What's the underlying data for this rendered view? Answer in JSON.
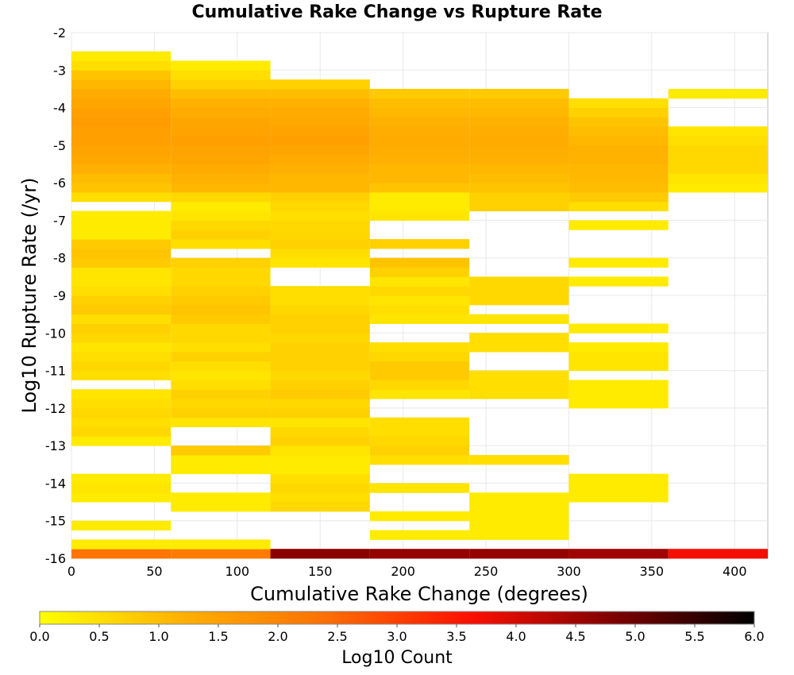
{
  "chart_data": {
    "type": "heatmap",
    "title": "Cumulative Rake Change vs Rupture Rate",
    "xlabel": "Cumulative Rake Change (degrees)",
    "ylabel": "Log10 Rupture Rate (/yr)",
    "xlim": [
      0,
      420
    ],
    "ylim": [
      -16,
      -2
    ],
    "x_ticks": [
      "0",
      "50",
      "100",
      "150",
      "200",
      "250",
      "300",
      "350",
      "400"
    ],
    "y_ticks": [
      "-2",
      "-3",
      "-4",
      "-5",
      "-6",
      "-7",
      "-8",
      "-9",
      "-10",
      "-11",
      "-12",
      "-13",
      "-14",
      "-15",
      "-16"
    ],
    "x_bin_width": 60,
    "y_bin_height": 0.25,
    "grid": true,
    "colorbar": {
      "label": "Log10 Count",
      "range": [
        0.0,
        6.0
      ],
      "ticks": [
        "0.0",
        "0.5",
        "1.0",
        "1.5",
        "2.0",
        "2.5",
        "3.0",
        "3.5",
        "4.0",
        "4.5",
        "5.0",
        "5.5",
        "6.0"
      ],
      "colors": [
        "#ffff00",
        "#ffb000",
        "#ff7000",
        "#ff1000",
        "#800000",
        "#000000"
      ]
    },
    "columns": [
      {
        "x_start": 0,
        "cells": [
          [
            -16,
            2.3
          ],
          [
            -15.75,
            0.3
          ],
          [
            -15.25,
            0.3
          ],
          [
            -14.5,
            0.3
          ],
          [
            -14.25,
            0.4
          ],
          [
            -14,
            0.3
          ],
          [
            -13,
            0.3
          ],
          [
            -12.75,
            0.6
          ],
          [
            -12.5,
            0.5
          ],
          [
            -12.25,
            0.6
          ],
          [
            -12,
            0.5
          ],
          [
            -11.75,
            0.4
          ],
          [
            -11.25,
            0.5
          ],
          [
            -11,
            0.6
          ],
          [
            -10.75,
            0.5
          ],
          [
            -10.5,
            0.4
          ],
          [
            -10.25,
            0.6
          ],
          [
            -10,
            0.7
          ],
          [
            -9.75,
            0.5
          ],
          [
            -9.5,
            0.8
          ],
          [
            -9.25,
            0.7
          ],
          [
            -9,
            0.5
          ],
          [
            -8.75,
            0.4
          ],
          [
            -8.5,
            0.4
          ],
          [
            -8.25,
            0.8
          ],
          [
            -8,
            0.9
          ],
          [
            -7.75,
            0.8
          ],
          [
            -7.5,
            0.3
          ],
          [
            -7.25,
            0.3
          ],
          [
            -7,
            0.3
          ],
          [
            -6.5,
            0.5
          ],
          [
            -6.25,
            0.9
          ],
          [
            -6,
            1.0
          ],
          [
            -5.75,
            1.2
          ],
          [
            -5.5,
            1.35
          ],
          [
            -5.25,
            1.45
          ],
          [
            -5,
            1.5
          ],
          [
            -4.75,
            1.5
          ],
          [
            -4.5,
            1.55
          ],
          [
            -4.25,
            1.5
          ],
          [
            -4,
            1.4
          ],
          [
            -3.75,
            1.3
          ],
          [
            -3.5,
            1.1
          ],
          [
            -3.25,
            0.9
          ],
          [
            -3,
            0.5
          ],
          [
            -2.75,
            0.3
          ]
        ]
      },
      {
        "x_start": 60,
        "cells": [
          [
            -16,
            2.2
          ],
          [
            -15.75,
            0.3
          ],
          [
            -14.75,
            0.3
          ],
          [
            -14.5,
            0.3
          ],
          [
            -13.75,
            0.3
          ],
          [
            -13.5,
            0.3
          ],
          [
            -13.25,
            0.8
          ],
          [
            -12.5,
            0.4
          ],
          [
            -12.25,
            0.7
          ],
          [
            -12,
            0.6
          ],
          [
            -11.75,
            0.7
          ],
          [
            -11.5,
            0.5
          ],
          [
            -11.25,
            0.4
          ],
          [
            -11,
            0.5
          ],
          [
            -10.75,
            0.7
          ],
          [
            -10.5,
            0.5
          ],
          [
            -10.25,
            0.6
          ],
          [
            -10,
            0.6
          ],
          [
            -9.75,
            0.8
          ],
          [
            -9.5,
            0.9
          ],
          [
            -9.25,
            0.8
          ],
          [
            -9,
            0.7
          ],
          [
            -8.75,
            0.6
          ],
          [
            -8.5,
            0.6
          ],
          [
            -8.25,
            0.7
          ],
          [
            -7.75,
            0.5
          ],
          [
            -7.5,
            0.7
          ],
          [
            -7.25,
            0.6
          ],
          [
            -7,
            0.4
          ],
          [
            -6.75,
            0.3
          ],
          [
            -6.5,
            0.6
          ],
          [
            -6.25,
            1.1
          ],
          [
            -6,
            1.2
          ],
          [
            -5.75,
            1.3
          ],
          [
            -5.5,
            1.4
          ],
          [
            -5.25,
            1.45
          ],
          [
            -5,
            1.5
          ],
          [
            -4.75,
            1.45
          ],
          [
            -4.5,
            1.4
          ],
          [
            -4.25,
            1.3
          ],
          [
            -4,
            1.2
          ],
          [
            -3.75,
            1.0
          ],
          [
            -3.5,
            0.7
          ],
          [
            -3.25,
            0.5
          ],
          [
            -3,
            0.3
          ]
        ]
      },
      {
        "x_start": 120,
        "cells": [
          [
            -16,
            4.7
          ],
          [
            -14.75,
            0.6
          ],
          [
            -14.5,
            0.5
          ],
          [
            -14.25,
            0.6
          ],
          [
            -14,
            0.5
          ],
          [
            -13.75,
            0.3
          ],
          [
            -13.5,
            0.3
          ],
          [
            -13.25,
            0.4
          ],
          [
            -13,
            0.7
          ],
          [
            -12.75,
            0.6
          ],
          [
            -12.5,
            0.4
          ],
          [
            -12.25,
            0.7
          ],
          [
            -12,
            0.6
          ],
          [
            -11.75,
            0.8
          ],
          [
            -11.5,
            0.7
          ],
          [
            -11.25,
            0.6
          ],
          [
            -11,
            0.7
          ],
          [
            -10.75,
            0.7
          ],
          [
            -10.5,
            0.7
          ],
          [
            -10.25,
            0.6
          ],
          [
            -10,
            0.7
          ],
          [
            -9.75,
            0.7
          ],
          [
            -9.5,
            0.6
          ],
          [
            -9.25,
            0.5
          ],
          [
            -9,
            0.5
          ],
          [
            -8.25,
            0.4
          ],
          [
            -8,
            0.5
          ],
          [
            -7.75,
            0.7
          ],
          [
            -7.5,
            0.6
          ],
          [
            -7.25,
            0.6
          ],
          [
            -7,
            0.5
          ],
          [
            -6.75,
            0.6
          ],
          [
            -6.5,
            0.7
          ],
          [
            -6.25,
            1.1
          ],
          [
            -6,
            1.1
          ],
          [
            -5.75,
            1.2
          ],
          [
            -5.5,
            1.3
          ],
          [
            -5.25,
            1.4
          ],
          [
            -5,
            1.5
          ],
          [
            -4.75,
            1.45
          ],
          [
            -4.5,
            1.35
          ],
          [
            -4.25,
            1.3
          ],
          [
            -4,
            1.2
          ],
          [
            -3.75,
            1.0
          ],
          [
            -3.5,
            0.7
          ]
        ]
      },
      {
        "x_start": 180,
        "cells": [
          [
            -16,
            4.6
          ],
          [
            -15.5,
            0.3
          ],
          [
            -15,
            0.3
          ],
          [
            -14.25,
            0.4
          ],
          [
            -13.5,
            0.5
          ],
          [
            -13.25,
            0.7
          ],
          [
            -13,
            0.6
          ],
          [
            -12.75,
            0.5
          ],
          [
            -12.5,
            0.5
          ],
          [
            -11.75,
            0.4
          ],
          [
            -11.5,
            0.6
          ],
          [
            -11.25,
            0.8
          ],
          [
            -11,
            0.8
          ],
          [
            -10.75,
            0.6
          ],
          [
            -10.5,
            0.5
          ],
          [
            -9.75,
            0.4
          ],
          [
            -9.5,
            0.5
          ],
          [
            -9.25,
            0.4
          ],
          [
            -9,
            0.6
          ],
          [
            -8.75,
            0.4
          ],
          [
            -8.5,
            0.7
          ],
          [
            -8.25,
            0.9
          ],
          [
            -7.75,
            0.7
          ],
          [
            -7,
            0.4
          ],
          [
            -6.75,
            0.3
          ],
          [
            -6.5,
            0.3
          ],
          [
            -6.25,
            0.9
          ],
          [
            -6,
            1.1
          ],
          [
            -5.75,
            1.1
          ],
          [
            -5.5,
            1.2
          ],
          [
            -5.25,
            1.25
          ],
          [
            -5,
            1.3
          ],
          [
            -4.75,
            1.25
          ],
          [
            -4.5,
            1.2
          ],
          [
            -4.25,
            1.1
          ],
          [
            -4,
            1.0
          ],
          [
            -3.75,
            0.8
          ]
        ]
      },
      {
        "x_start": 240,
        "cells": [
          [
            -16,
            4.6
          ],
          [
            -15.5,
            0.3
          ],
          [
            -15.25,
            0.3
          ],
          [
            -15,
            0.3
          ],
          [
            -14.75,
            0.3
          ],
          [
            -14.5,
            0.3
          ],
          [
            -13.5,
            0.5
          ],
          [
            -11.75,
            0.5
          ],
          [
            -11.5,
            0.5
          ],
          [
            -11.25,
            0.5
          ],
          [
            -10.5,
            0.5
          ],
          [
            -10.25,
            0.5
          ],
          [
            -9.75,
            0.4
          ],
          [
            -9.25,
            0.6
          ],
          [
            -9,
            0.6
          ],
          [
            -8.75,
            0.6
          ],
          [
            -6.75,
            0.7
          ],
          [
            -6.5,
            0.7
          ],
          [
            -6.25,
            0.9
          ],
          [
            -6,
            1.0
          ],
          [
            -5.75,
            1.1
          ],
          [
            -5.5,
            1.2
          ],
          [
            -5.25,
            1.25
          ],
          [
            -5,
            1.3
          ],
          [
            -4.75,
            1.25
          ],
          [
            -4.5,
            1.2
          ],
          [
            -4.25,
            1.1
          ],
          [
            -4,
            1.0
          ],
          [
            -3.75,
            0.8
          ]
        ]
      },
      {
        "x_start": 300,
        "cells": [
          [
            -16,
            4.5
          ],
          [
            -14.5,
            0.3
          ],
          [
            -14.25,
            0.3
          ],
          [
            -14,
            0.3
          ],
          [
            -12,
            0.3
          ],
          [
            -11.75,
            0.3
          ],
          [
            -11.5,
            0.3
          ],
          [
            -11,
            0.4
          ],
          [
            -10.75,
            0.4
          ],
          [
            -10.5,
            0.3
          ],
          [
            -10,
            0.3
          ],
          [
            -8.75,
            0.3
          ],
          [
            -8.25,
            0.3
          ],
          [
            -7.25,
            0.3
          ],
          [
            -6.75,
            0.5
          ],
          [
            -6.5,
            0.8
          ],
          [
            -6.25,
            1.0
          ],
          [
            -6,
            1.05
          ],
          [
            -5.75,
            1.1
          ],
          [
            -5.5,
            1.15
          ],
          [
            -5.25,
            1.15
          ],
          [
            -5,
            1.1
          ],
          [
            -4.75,
            1.0
          ],
          [
            -4.5,
            0.9
          ],
          [
            -4.25,
            0.7
          ],
          [
            -4,
            0.5
          ]
        ]
      },
      {
        "x_start": 360,
        "cells": [
          [
            -16,
            3.7
          ],
          [
            -6.25,
            0.3
          ],
          [
            -6,
            0.4
          ],
          [
            -5.75,
            0.6
          ],
          [
            -5.5,
            0.6
          ],
          [
            -5.25,
            0.6
          ],
          [
            -5,
            0.5
          ],
          [
            -4.75,
            0.4
          ],
          [
            -3.75,
            0.3
          ]
        ]
      }
    ]
  }
}
